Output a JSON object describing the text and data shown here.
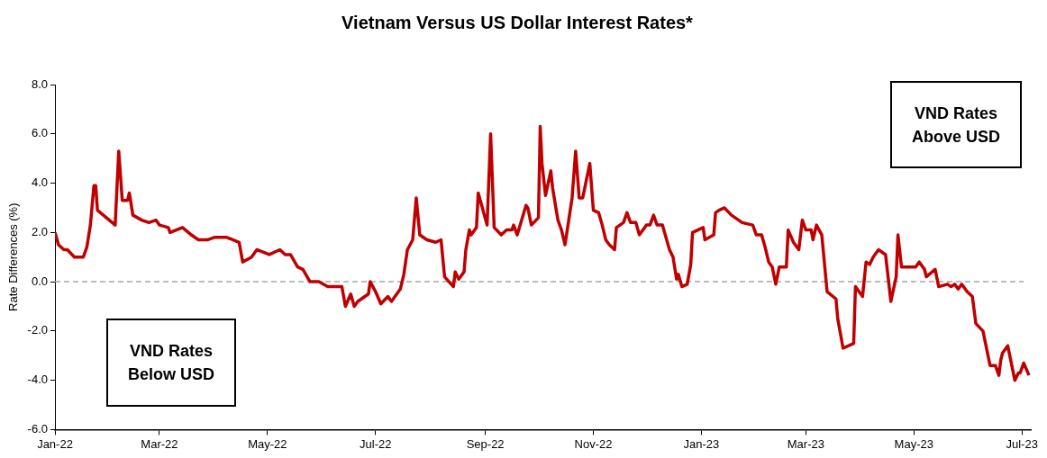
{
  "chart_data": {
    "type": "line",
    "title": "Vietnam Versus US Dollar Interest Rates*",
    "ylabel": "Rate Differences (%)",
    "annotations": [
      "VND Rates Below USD",
      "VND Rates Above USD"
    ],
    "x": [
      "2022-01-01",
      "2022-01-03",
      "2022-01-06",
      "2022-01-08",
      "2022-01-12",
      "2022-01-17",
      "2022-01-19",
      "2022-01-21",
      "2022-01-23",
      "2022-01-24",
      "2022-01-25",
      "2022-02-04",
      "2022-02-06",
      "2022-02-08",
      "2022-02-11",
      "2022-02-12",
      "2022-02-14",
      "2022-02-19",
      "2022-02-23",
      "2022-02-27",
      "2022-03-01",
      "2022-03-06",
      "2022-03-07",
      "2022-03-14",
      "2022-03-19",
      "2022-03-23",
      "2022-03-28",
      "2022-04-01",
      "2022-04-08",
      "2022-04-15",
      "2022-04-17",
      "2022-04-22",
      "2022-04-25",
      "2022-05-02",
      "2022-05-08",
      "2022-05-11",
      "2022-05-14",
      "2022-05-18",
      "2022-05-21",
      "2022-05-25",
      "2022-05-30",
      "2022-06-04",
      "2022-06-08",
      "2022-06-12",
      "2022-06-14",
      "2022-06-17",
      "2022-06-19",
      "2022-06-21",
      "2022-06-27",
      "2022-06-28",
      "2022-07-01",
      "2022-07-04",
      "2022-07-08",
      "2022-07-10",
      "2022-07-15",
      "2022-07-17",
      "2022-07-19",
      "2022-07-22",
      "2022-07-24",
      "2022-07-26",
      "2022-07-30",
      "2022-08-04",
      "2022-08-07",
      "2022-08-09",
      "2022-08-14",
      "2022-08-15",
      "2022-08-17",
      "2022-08-20",
      "2022-08-21",
      "2022-08-23",
      "2022-08-24",
      "2022-08-27",
      "2022-08-28",
      "2022-09-02",
      "2022-09-04",
      "2022-09-06",
      "2022-09-10",
      "2022-09-13",
      "2022-09-16",
      "2022-09-17",
      "2022-09-19",
      "2022-09-24",
      "2022-09-25",
      "2022-09-27",
      "2022-10-01",
      "2022-10-02",
      "2022-10-03",
      "2022-10-05",
      "2022-10-08",
      "2022-10-09",
      "2022-10-12",
      "2022-10-14",
      "2022-10-16",
      "2022-10-20",
      "2022-10-22",
      "2022-10-24",
      "2022-10-26",
      "2022-10-30",
      "2022-11-01",
      "2022-11-04",
      "2022-11-06",
      "2022-11-08",
      "2022-11-10",
      "2022-11-13",
      "2022-11-14",
      "2022-11-18",
      "2022-11-20",
      "2022-11-22",
      "2022-11-25",
      "2022-11-27",
      "2022-12-01",
      "2022-12-03",
      "2022-12-05",
      "2022-12-07",
      "2022-12-10",
      "2022-12-14",
      "2022-12-16",
      "2022-12-18",
      "2022-12-19",
      "2022-12-21",
      "2022-12-24",
      "2022-12-26",
      "2022-12-27",
      "2023-01-02",
      "2023-01-03",
      "2023-01-08",
      "2023-01-09",
      "2023-01-11",
      "2023-01-14",
      "2023-01-18",
      "2023-01-24",
      "2023-01-30",
      "2023-02-01",
      "2023-02-04",
      "2023-02-06",
      "2023-02-08",
      "2023-02-10",
      "2023-02-12",
      "2023-02-14",
      "2023-02-18",
      "2023-02-19",
      "2023-02-22",
      "2023-02-25",
      "2023-02-27",
      "2023-03-01",
      "2023-03-04",
      "2023-03-05",
      "2023-03-07",
      "2023-03-10",
      "2023-03-13",
      "2023-03-18",
      "2023-03-19",
      "2023-03-22",
      "2023-03-28",
      "2023-03-29",
      "2023-04-02",
      "2023-04-04",
      "2023-04-06",
      "2023-04-08",
      "2023-04-11",
      "2023-04-15",
      "2023-04-18",
      "2023-04-21",
      "2023-04-22",
      "2023-04-24",
      "2023-05-02",
      "2023-05-04",
      "2023-05-07",
      "2023-05-08",
      "2023-05-13",
      "2023-05-15",
      "2023-05-20",
      "2023-05-22",
      "2023-05-24",
      "2023-05-26",
      "2023-05-28",
      "2023-05-31",
      "2023-06-03",
      "2023-06-05",
      "2023-06-09",
      "2023-06-13",
      "2023-06-16",
      "2023-06-18",
      "2023-06-19",
      "2023-06-20",
      "2023-06-23",
      "2023-06-27",
      "2023-06-29",
      "2023-06-30",
      "2023-07-02",
      "2023-07-05"
    ],
    "series": [
      {
        "color": "#c00000",
        "values": [
          2.0,
          1.5,
          1.3,
          1.3,
          1.0,
          1.0,
          1.4,
          2.3,
          3.9,
          3.9,
          2.9,
          2.3,
          5.3,
          3.3,
          3.3,
          3.6,
          2.7,
          2.5,
          2.4,
          2.5,
          2.3,
          2.2,
          2.0,
          2.2,
          1.9,
          1.7,
          1.7,
          1.8,
          1.8,
          1.6,
          0.8,
          1.0,
          1.3,
          1.1,
          1.3,
          1.1,
          1.1,
          0.6,
          0.5,
          0.0,
          0.0,
          -0.2,
          -0.2,
          -0.2,
          -1.0,
          -0.5,
          -1.0,
          -0.8,
          -0.5,
          0.0,
          -0.4,
          -0.9,
          -0.6,
          -0.8,
          -0.3,
          0.3,
          1.3,
          1.7,
          3.4,
          1.9,
          1.7,
          1.6,
          1.7,
          0.2,
          -0.2,
          0.4,
          0.1,
          0.4,
          1.3,
          2.1,
          1.9,
          2.2,
          3.6,
          2.3,
          6.0,
          2.2,
          1.9,
          2.1,
          2.1,
          2.3,
          1.9,
          3.1,
          3.0,
          2.3,
          2.6,
          6.3,
          4.8,
          3.5,
          4.5,
          3.8,
          2.5,
          2.1,
          1.5,
          3.4,
          5.3,
          3.4,
          3.4,
          4.8,
          2.9,
          2.8,
          2.3,
          1.7,
          1.5,
          1.3,
          2.2,
          2.4,
          2.8,
          2.4,
          2.4,
          1.9,
          2.3,
          2.3,
          2.7,
          2.3,
          2.3,
          1.3,
          1.0,
          0.1,
          0.3,
          -0.2,
          -0.1,
          0.7,
          2.0,
          2.2,
          1.7,
          1.9,
          2.8,
          2.9,
          3.0,
          2.7,
          2.4,
          2.3,
          1.9,
          1.9,
          1.4,
          0.8,
          0.6,
          -0.1,
          0.6,
          0.6,
          2.1,
          1.6,
          1.3,
          2.5,
          2.1,
          2.1,
          1.7,
          2.3,
          1.9,
          -0.4,
          -0.7,
          -1.5,
          -2.7,
          -2.5,
          -0.2,
          -0.6,
          0.8,
          0.7,
          1.0,
          1.3,
          1.1,
          -0.8,
          0.2,
          1.9,
          0.6,
          0.6,
          0.8,
          0.5,
          0.2,
          0.5,
          -0.2,
          -0.1,
          -0.2,
          -0.1,
          -0.3,
          -0.1,
          -0.4,
          -0.6,
          -1.7,
          -2.0,
          -3.4,
          -3.4,
          -3.8,
          -3.2,
          -2.9,
          -2.6,
          -4.0,
          -3.7,
          -3.7,
          -3.3,
          -3.8
        ]
      }
    ],
    "xlim": [
      "2022-01-01",
      "2023-07-06"
    ],
    "xticks": [
      {
        "value": "2022-01-01",
        "label": "Jan-22"
      },
      {
        "value": "2022-03-01",
        "label": "Mar-22"
      },
      {
        "value": "2022-05-01",
        "label": "May-22"
      },
      {
        "value": "2022-07-01",
        "label": "Jul-22"
      },
      {
        "value": "2022-09-01",
        "label": "Sep-22"
      },
      {
        "value": "2022-11-01",
        "label": "Nov-22"
      },
      {
        "value": "2023-01-01",
        "label": "Jan-23"
      },
      {
        "value": "2023-03-01",
        "label": "Mar-23"
      },
      {
        "value": "2023-05-01",
        "label": "May-23"
      },
      {
        "value": "2023-07-01",
        "label": "Jul-23"
      }
    ],
    "ylim": [
      -6,
      8
    ],
    "yticks": [
      {
        "value": -6,
        "label": "-6.0"
      },
      {
        "value": -4,
        "label": "-4.0"
      },
      {
        "value": -2,
        "label": "-2.0"
      },
      {
        "value": 0,
        "label": "0.0"
      },
      {
        "value": 2,
        "label": "2.0"
      },
      {
        "value": 4,
        "label": "4.0"
      },
      {
        "value": 6,
        "label": "6.0"
      },
      {
        "value": 8,
        "label": "8.0"
      }
    ],
    "ref_lines": [
      {
        "axis": "y",
        "value": 0,
        "color": "#a6a6a6",
        "line_style": "dashed"
      }
    ],
    "marker": "none",
    "line_style": "solid"
  }
}
